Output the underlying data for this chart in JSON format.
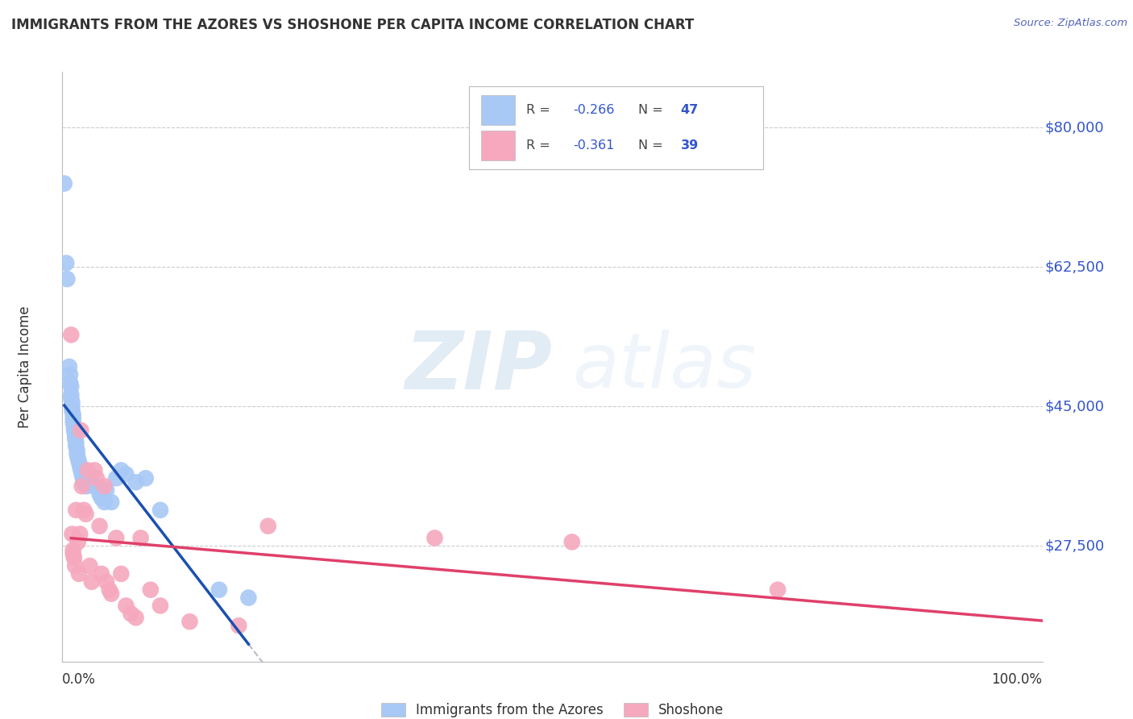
{
  "title": "IMMIGRANTS FROM THE AZORES VS SHOSHONE PER CAPITA INCOME CORRELATION CHART",
  "source": "Source: ZipAtlas.com",
  "ylabel": "Per Capita Income",
  "legend_label1": "Immigrants from the Azores",
  "legend_label2": "Shoshone",
  "blue_color": "#a8c8f5",
  "pink_color": "#f5a8be",
  "blue_line_color": "#1a50b0",
  "pink_line_color": "#e0406a",
  "dash_color": "#bbbbcc",
  "grid_color": "#cccccc",
  "title_color": "#333333",
  "source_color": "#5566bb",
  "axis_value_color": "#3355cc",
  "ytick_labels": [
    "$80,000",
    "$62,500",
    "$45,000",
    "$27,500"
  ],
  "ytick_values": [
    80000,
    62500,
    45000,
    27500
  ],
  "ylim": [
    13000,
    87000
  ],
  "xlim": [
    0.0,
    1.0
  ],
  "blue_x": [
    0.002,
    0.004,
    0.005,
    0.007,
    0.008,
    0.008,
    0.009,
    0.009,
    0.009,
    0.01,
    0.01,
    0.01,
    0.011,
    0.011,
    0.011,
    0.012,
    0.012,
    0.013,
    0.013,
    0.014,
    0.014,
    0.015,
    0.015,
    0.016,
    0.017,
    0.018,
    0.019,
    0.02,
    0.021,
    0.022,
    0.025,
    0.027,
    0.03,
    0.033,
    0.038,
    0.04,
    0.043,
    0.045,
    0.05,
    0.055,
    0.06,
    0.065,
    0.075,
    0.085,
    0.1,
    0.16,
    0.19
  ],
  "blue_y": [
    73000,
    63000,
    61000,
    50000,
    49000,
    48000,
    47500,
    46500,
    46000,
    45500,
    45000,
    44500,
    44000,
    43500,
    43000,
    42500,
    42000,
    41500,
    41000,
    40500,
    40000,
    39500,
    39000,
    38500,
    38000,
    37500,
    37000,
    36500,
    36000,
    35500,
    35000,
    36000,
    35500,
    35000,
    34000,
    33500,
    33000,
    34500,
    33000,
    36000,
    37000,
    36500,
    35500,
    36000,
    32000,
    22000,
    21000
  ],
  "pink_x": [
    0.009,
    0.01,
    0.011,
    0.011,
    0.012,
    0.013,
    0.014,
    0.016,
    0.017,
    0.018,
    0.019,
    0.02,
    0.022,
    0.024,
    0.026,
    0.028,
    0.03,
    0.033,
    0.035,
    0.038,
    0.04,
    0.043,
    0.045,
    0.048,
    0.05,
    0.055,
    0.06,
    0.065,
    0.07,
    0.075,
    0.08,
    0.09,
    0.1,
    0.13,
    0.18,
    0.21,
    0.38,
    0.52,
    0.73
  ],
  "pink_y": [
    54000,
    29000,
    27000,
    26500,
    26000,
    25000,
    32000,
    28000,
    24000,
    29000,
    42000,
    35000,
    32000,
    31500,
    37000,
    25000,
    23000,
    37000,
    36000,
    30000,
    24000,
    35000,
    23000,
    22000,
    21500,
    28500,
    24000,
    20000,
    19000,
    18500,
    28500,
    22000,
    20000,
    18000,
    17500,
    30000,
    28500,
    28000,
    22000
  ]
}
